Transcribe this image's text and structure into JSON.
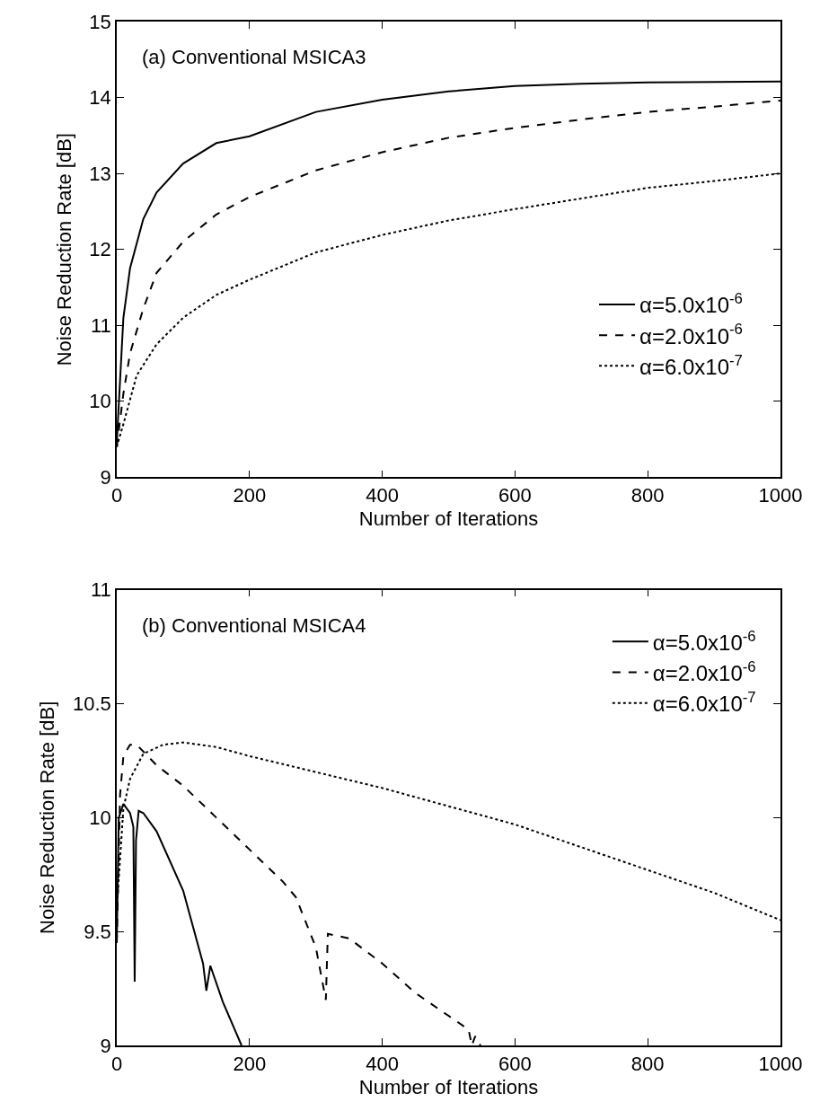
{
  "chart_data": [
    {
      "type": "line",
      "title": "(a) Conventional MSICA3",
      "xlabel": "Number of Iterations",
      "ylabel": "Noise Reduction Rate [dB]",
      "xlim": [
        0,
        1000
      ],
      "xticks": [
        0,
        200,
        400,
        600,
        800,
        1000
      ],
      "ylim": [
        9,
        15
      ],
      "yticks": [
        9,
        10,
        11,
        12,
        13,
        14,
        15
      ],
      "legend": "bottom right",
      "marker": "none",
      "series": [
        {
          "name": "α=5.0x10$^{-6}$",
          "color": "#000000",
          "line_style": "solid",
          "x": [
            0,
            10,
            20,
            40,
            60,
            100,
            150,
            200,
            300,
            400,
            500,
            600,
            700,
            800,
            1000
          ],
          "values": [
            9.45,
            11.1,
            11.75,
            12.4,
            12.75,
            13.13,
            13.4,
            13.49,
            13.81,
            13.97,
            14.08,
            14.15,
            14.18,
            14.2,
            14.21
          ]
        },
        {
          "name": "α=2.0x10$^{-6}$",
          "color": "#000000",
          "line_style": "dashed",
          "x": [
            0,
            10,
            20,
            40,
            60,
            100,
            150,
            200,
            300,
            400,
            500,
            600,
            700,
            800,
            900,
            1000
          ],
          "values": [
            9.4,
            10.1,
            10.63,
            11.22,
            11.69,
            12.1,
            12.46,
            12.69,
            13.04,
            13.28,
            13.47,
            13.6,
            13.71,
            13.81,
            13.88,
            13.96
          ]
        },
        {
          "name": "α=6.0x10$^{-7}$",
          "color": "#000000",
          "line_style": "dotted",
          "x": [
            0,
            10,
            30,
            60,
            100,
            150,
            200,
            300,
            400,
            500,
            600,
            700,
            800,
            900,
            1000
          ],
          "values": [
            9.4,
            9.7,
            10.34,
            10.75,
            11.1,
            11.4,
            11.6,
            11.96,
            12.19,
            12.38,
            12.53,
            12.67,
            12.81,
            12.9,
            13.0
          ]
        }
      ]
    },
    {
      "type": "line",
      "title": "(b) Conventional MSICA4",
      "xlabel": "Number of Iterations",
      "ylabel": "Noise Reduction Rate [dB]",
      "xlim": [
        0,
        1000
      ],
      "xticks": [
        0,
        200,
        400,
        600,
        800,
        1000
      ],
      "ylim": [
        9,
        11
      ],
      "yticks": [
        9,
        9.5,
        10,
        10.5,
        11
      ],
      "legend": "top right",
      "marker": "none",
      "series": [
        {
          "name": "α=5.0x10$^{-6}$",
          "color": "#000000",
          "line_style": "solid",
          "x": [
            0,
            3,
            10,
            20,
            25,
            27,
            29,
            33,
            40,
            60,
            100,
            130,
            135,
            141,
            160,
            188
          ],
          "values": [
            9.45,
            10.0,
            10.06,
            10.02,
            9.96,
            9.28,
            9.9,
            10.03,
            10.02,
            9.94,
            9.68,
            9.36,
            9.24,
            9.35,
            9.19,
            9.0
          ]
        },
        {
          "name": "α=2.0x10$^{-6}$",
          "color": "#000000",
          "line_style": "dashed",
          "x": [
            0,
            5,
            10,
            20,
            30,
            60,
            100,
            150,
            200,
            250,
            270,
            300,
            315,
            318,
            350,
            400,
            450,
            500,
            530,
            535,
            540,
            548
          ],
          "values": [
            9.45,
            10.1,
            10.27,
            10.32,
            10.32,
            10.23,
            10.14,
            10.0,
            9.86,
            9.72,
            9.65,
            9.43,
            9.2,
            9.49,
            9.47,
            9.36,
            9.23,
            9.13,
            9.07,
            9.0,
            9.04,
            9.0
          ]
        },
        {
          "name": "α=6.0x10$^{-7}$",
          "color": "#000000",
          "line_style": "dotted",
          "x": [
            0,
            10,
            20,
            40,
            70,
            100,
            150,
            200,
            300,
            400,
            500,
            600,
            700,
            800,
            900,
            1000
          ],
          "values": [
            9.6,
            10.04,
            10.17,
            10.28,
            10.32,
            10.33,
            10.31,
            10.27,
            10.2,
            10.13,
            10.05,
            9.97,
            9.87,
            9.77,
            9.67,
            9.55
          ]
        }
      ]
    }
  ]
}
